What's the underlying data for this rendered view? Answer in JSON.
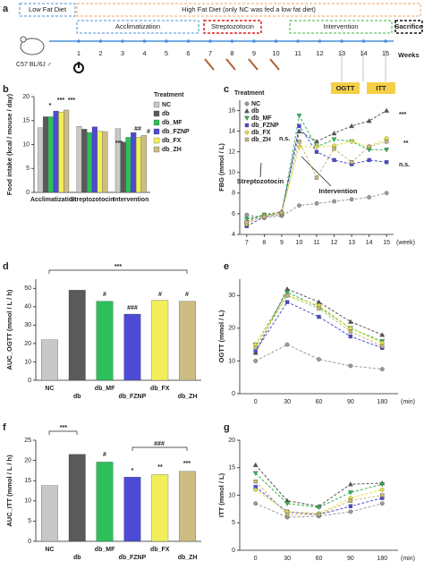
{
  "timeline": {
    "panel": "a",
    "diet_low": "Low Fat Diet",
    "diet_high": "High Fat Diet (only NC was fed a low fat diet)",
    "phases": [
      "Acclimatization",
      "Streptozotocin",
      "Intervention",
      "Sacrifice"
    ],
    "strain": "C57 BL/6J ♂",
    "weeks": [
      1,
      2,
      3,
      4,
      5,
      6,
      7,
      8,
      9,
      10,
      11,
      12,
      13,
      14,
      15
    ],
    "weeks_label": "Weeks",
    "tests": [
      "OGTT",
      "ITT"
    ]
  },
  "chart_data": [
    {
      "panel": "b",
      "type": "grouped-bar",
      "y_label": "Food intake (kcal / mouse / day)",
      "legend_title": "Treatment",
      "categories": [
        "Acclimatization",
        "Streptozotocin",
        "Intervention"
      ],
      "series": [
        {
          "name": "NC",
          "color": "#c8c8c8",
          "values": [
            13.5,
            13.8,
            13.3
          ]
        },
        {
          "name": "db",
          "color": "#5a5a5a",
          "values": [
            15.8,
            13.2,
            10.5
          ]
        },
        {
          "name": "db_MF",
          "color": "#2dbf5a",
          "values": [
            15.8,
            12.5,
            11.5
          ]
        },
        {
          "name": "db_FZNP",
          "color": "#4b4bd6",
          "values": [
            17,
            13.7,
            12.5
          ]
        },
        {
          "name": "db_FX",
          "color": "#f2ee5a",
          "values": [
            16.8,
            12.8,
            11.5
          ]
        },
        {
          "name": "db_ZH",
          "color": "#cbbd84",
          "values": [
            17.2,
            12.7,
            11.9
          ]
        }
      ],
      "ylim": [
        0,
        20
      ],
      "yticks": [
        0,
        5,
        10,
        15,
        20
      ],
      "annotations": [
        "*",
        "***",
        "***",
        "***",
        "##",
        "#"
      ]
    },
    {
      "panel": "c",
      "type": "line",
      "y_label": "FBG (mmol / L)",
      "x_label": "(week)",
      "legend_title": "Treatment",
      "x": [
        7,
        8,
        9,
        10,
        11,
        12,
        13,
        14,
        15
      ],
      "series": [
        {
          "name": "NC",
          "color": "#9a9a9a",
          "marker": "circle",
          "values": [
            5.9,
            5.6,
            5.8,
            6.8,
            7.0,
            7.2,
            7.4,
            7.6,
            8.0
          ]
        },
        {
          "name": "db",
          "color": "#555555",
          "marker": "triangle",
          "values": [
            5.3,
            5.9,
            6.2,
            14.0,
            13.0,
            13.8,
            14.5,
            15.0,
            16.0
          ]
        },
        {
          "name": "db_MF",
          "color": "#2db84d",
          "marker": "triangle-down",
          "values": [
            5.5,
            5.9,
            6.0,
            15.5,
            12.5,
            13.2,
            13.0,
            12.2,
            12.2
          ]
        },
        {
          "name": "db_FZNP",
          "color": "#4b4bd6",
          "marker": "square",
          "values": [
            4.8,
            5.7,
            6.0,
            14.5,
            12.0,
            11.2,
            10.8,
            11.2,
            11.0
          ]
        },
        {
          "name": "db_FX",
          "color": "#e6e23a",
          "marker": "diamond",
          "values": [
            5.0,
            5.8,
            6.0,
            12.5,
            12.5,
            12.6,
            13.0,
            12.5,
            13.3
          ]
        },
        {
          "name": "db_ZH",
          "color": "#c7b77a",
          "marker": "square",
          "values": [
            5.2,
            5.7,
            6.1,
            13.0,
            9.5,
            12.3,
            11.0,
            12.5,
            13.0
          ]
        }
      ],
      "xlim": [
        6.6,
        15.4
      ],
      "xticks": [
        7,
        8,
        9,
        10,
        11,
        12,
        13,
        14,
        15
      ],
      "ylim": [
        4,
        17
      ],
      "yticks": [
        4,
        6,
        8,
        10,
        12,
        14,
        16
      ],
      "annotations": [
        "Streptozotocin",
        "Intervention",
        "n.s.",
        "***",
        "**",
        "n.s."
      ]
    },
    {
      "panel": "d",
      "type": "bar",
      "y_label": "AUC_OGTT (mmol / L / h)",
      "categories": [
        "NC",
        "db",
        "db_MF",
        "db_FZNP",
        "db_FX",
        "db_ZH"
      ],
      "values": [
        22,
        49,
        43,
        36,
        43.5,
        43
      ],
      "colors": [
        "#c8c8c8",
        "#5a5a5a",
        "#2dbf5a",
        "#4b4bd6",
        "#f2ee5a",
        "#cbbd84"
      ],
      "ylim": [
        0,
        55
      ],
      "yticks": [
        0,
        10,
        20,
        30,
        40,
        50
      ],
      "annotations": [
        "***",
        "#",
        "###",
        "#",
        "#"
      ]
    },
    {
      "panel": "e",
      "type": "line",
      "y_label": "OGTT (mmol / L)",
      "x_label": "(min)",
      "categories": [
        "0",
        "30",
        "60",
        "90",
        "180"
      ],
      "series": [
        {
          "name": "NC",
          "color": "#9a9a9a",
          "marker": "circle",
          "values": [
            10,
            15,
            10.5,
            8.5,
            7.5
          ]
        },
        {
          "name": "db",
          "color": "#555555",
          "marker": "triangle",
          "values": [
            12.5,
            32,
            28,
            22,
            18
          ]
        },
        {
          "name": "db_MF",
          "color": "#2db84d",
          "marker": "triangle-down",
          "values": [
            15,
            31,
            26.5,
            20,
            16
          ]
        },
        {
          "name": "db_FZNP",
          "color": "#4b4bd6",
          "marker": "square",
          "values": [
            13,
            28,
            23.5,
            17.5,
            14
          ]
        },
        {
          "name": "db_FX",
          "color": "#e6e23a",
          "marker": "diamond",
          "values": [
            15,
            30,
            27,
            20,
            15.5
          ]
        },
        {
          "name": "db_ZH",
          "color": "#c7b77a",
          "marker": "square",
          "values": [
            14,
            30,
            26,
            19,
            14.5
          ]
        }
      ],
      "ylim": [
        0,
        35
      ],
      "yticks": [
        0,
        10,
        20,
        30
      ],
      "annotations": []
    },
    {
      "panel": "f",
      "type": "bar",
      "y_label": "AUC_ITT (mmol / L / h)",
      "categories": [
        "NC",
        "db",
        "db_MF",
        "db_FZNP",
        "db_FX",
        "db_ZH"
      ],
      "values": [
        13.8,
        21.5,
        19.6,
        15.9,
        16.5,
        17.3
      ],
      "colors": [
        "#c8c8c8",
        "#5a5a5a",
        "#2dbf5a",
        "#4b4bd6",
        "#f2ee5a",
        "#cbbd84"
      ],
      "ylim": [
        0,
        25
      ],
      "yticks": [
        0,
        5,
        10,
        15,
        20,
        25
      ],
      "annotations": [
        "***",
        "#",
        "###",
        "*",
        "**",
        "***"
      ]
    },
    {
      "panel": "g",
      "type": "line",
      "y_label": "ITT (mmol / L)",
      "x_label": "(min)",
      "categories": [
        "0",
        "30",
        "60",
        "90",
        "180"
      ],
      "series": [
        {
          "name": "NC",
          "color": "#9a9a9a",
          "marker": "circle",
          "values": [
            8.5,
            6,
            6.2,
            7,
            8.5
          ]
        },
        {
          "name": "db",
          "color": "#555555",
          "marker": "triangle",
          "values": [
            15.5,
            9,
            8,
            12,
            12.2
          ]
        },
        {
          "name": "db_MF",
          "color": "#2db84d",
          "marker": "triangle-down",
          "values": [
            14,
            8.5,
            7.8,
            10.5,
            12
          ]
        },
        {
          "name": "db_FZNP",
          "color": "#4b4bd6",
          "marker": "square",
          "values": [
            11.5,
            7,
            6.5,
            8,
            9.5
          ]
        },
        {
          "name": "db_FX",
          "color": "#e6e23a",
          "marker": "diamond",
          "values": [
            11,
            7,
            6.7,
            9.5,
            11
          ]
        },
        {
          "name": "db_ZH",
          "color": "#c7b77a",
          "marker": "square",
          "values": [
            12.5,
            6.5,
            6.5,
            9,
            10
          ]
        }
      ],
      "ylim": [
        0,
        20
      ],
      "yticks": [
        0,
        5,
        10,
        15,
        20
      ],
      "annotations": []
    }
  ]
}
